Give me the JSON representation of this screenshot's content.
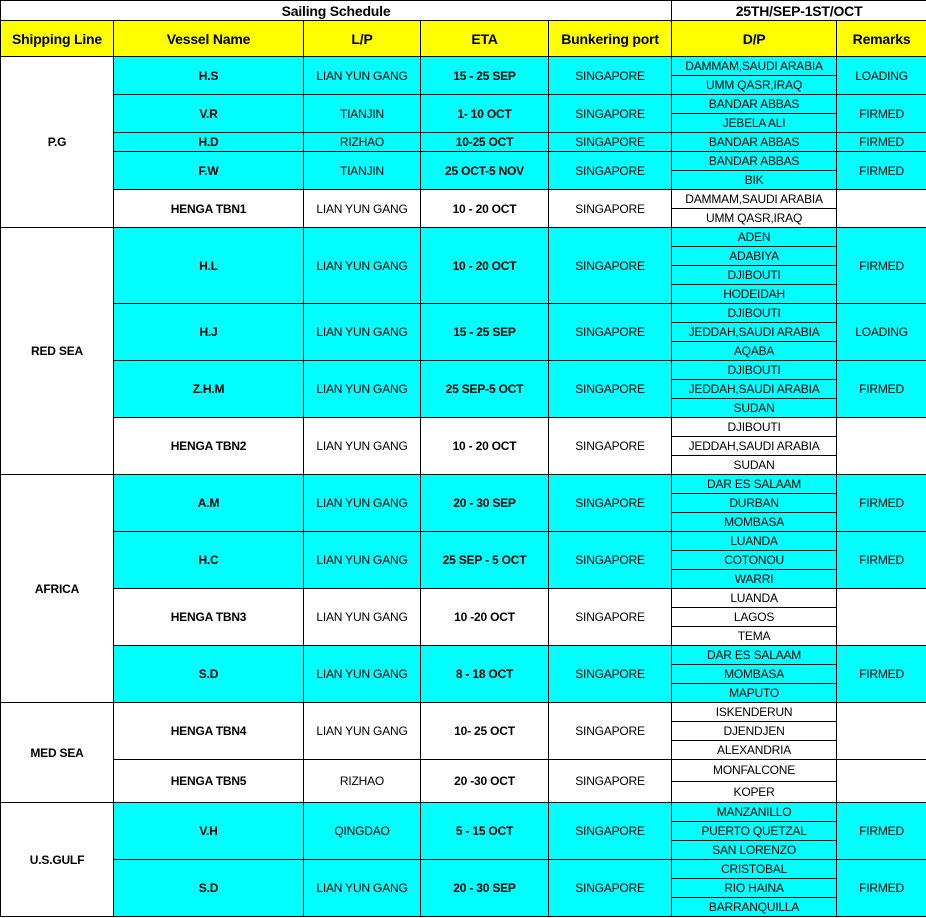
{
  "title": "Sailing Schedule",
  "period": "25TH/SEP-1ST/OCT",
  "headers": [
    "Shipping Line",
    "Vessel Name",
    "L/P",
    "ETA",
    "Bunkering port",
    "D/P",
    "Remarks"
  ],
  "colors": {
    "header": "#ffff00",
    "highlight": "#00ffff"
  },
  "groups": [
    {
      "name": "P.G",
      "vessels": [
        {
          "name": "H.S",
          "lp": "LIAN YUN GANG",
          "eta": "15 - 25 SEP",
          "port": "SINGAPORE",
          "dp": [
            "DAMMAM,SAUDI ARABIA",
            "UMM QASR,IRAQ"
          ],
          "remarks": "LOADING",
          "highlight": true
        },
        {
          "name": "V.R",
          "lp": "TIANJIN",
          "eta": "1- 10 OCT",
          "port": "SINGAPORE",
          "dp": [
            "BANDAR ABBAS",
            "JEBELA ALI"
          ],
          "remarks": "FIRMED",
          "highlight": true
        },
        {
          "name": "H.D",
          "lp": "RIZHAO",
          "eta": "10-25 OCT",
          "port": "SINGAPORE",
          "dp": [
            "BANDAR ABBAS"
          ],
          "remarks": "FIRMED",
          "highlight": true
        },
        {
          "name": "F.W",
          "lp": "TIANJIN",
          "eta": "25 OCT-5 NOV",
          "port": "SINGAPORE",
          "dp": [
            "BANDAR ABBAS",
            "BIK"
          ],
          "remarks": "FIRMED",
          "highlight": true
        },
        {
          "name": "HENGA TBN1",
          "lp": "LIAN YUN GANG",
          "eta": "10 - 20 OCT",
          "port": "SINGAPORE",
          "dp": [
            "DAMMAM,SAUDI ARABIA",
            "UMM QASR,IRAQ"
          ],
          "remarks": "",
          "highlight": false
        }
      ]
    },
    {
      "name": "RED SEA",
      "vessels": [
        {
          "name": "H.L",
          "lp": "LIAN YUN GANG",
          "eta": "10 - 20 OCT",
          "port": "SINGAPORE",
          "dp": [
            "ADEN",
            "ADABIYA",
            "DJIBOUTI",
            "HODEIDAH"
          ],
          "remarks": "FIRMED",
          "highlight": true
        },
        {
          "name": "H.J",
          "lp": "LIAN YUN GANG",
          "eta": "15 - 25 SEP",
          "port": "SINGAPORE",
          "dp": [
            "DJIBOUTI",
            "JEDDAH,SAUDI ARABIA",
            "AQABA"
          ],
          "remarks": "LOADING",
          "highlight": true
        },
        {
          "name": "Z.H.M",
          "lp": "LIAN YUN GANG",
          "eta": "25 SEP-5 OCT",
          "port": "SINGAPORE",
          "dp": [
            "DJIBOUTI",
            "JEDDAH,SAUDI ARABIA",
            "SUDAN"
          ],
          "remarks": "FIRMED",
          "highlight": true
        },
        {
          "name": "HENGA TBN2",
          "lp": "LIAN YUN GANG",
          "eta": "10 - 20 OCT",
          "port": "SINGAPORE",
          "dp": [
            "DJIBOUTI",
            "JEDDAH,SAUDI ARABIA",
            "SUDAN"
          ],
          "remarks": "",
          "highlight": false
        }
      ]
    },
    {
      "name": "AFRICA",
      "vessels": [
        {
          "name": "A.M",
          "lp": "LIAN YUN GANG",
          "eta": "20 - 30 SEP",
          "port": "SINGAPORE",
          "dp": [
            "DAR ES SALAAM",
            "DURBAN",
            "MOMBASA"
          ],
          "remarks": "FIRMED",
          "highlight": true
        },
        {
          "name": "H.C",
          "lp": "LIAN YUN GANG",
          "eta": "25 SEP - 5 OCT",
          "port": "SINGAPORE",
          "dp": [
            "LUANDA",
            "COTONOU",
            "WARRI"
          ],
          "remarks": "FIRMED",
          "highlight": true
        },
        {
          "name": "HENGA TBN3",
          "lp": "LIAN YUN GANG",
          "eta": "10 -20 OCT",
          "port": "SINGAPORE",
          "dp": [
            "LUANDA",
            "LAGOS",
            "TEMA"
          ],
          "remarks": "",
          "highlight": false
        },
        {
          "name": "S.D",
          "lp": "LIAN YUN GANG",
          "eta": "8 - 18 OCT",
          "port": "SINGAPORE",
          "dp": [
            "DAR ES SALAAM",
            "MOMBASA",
            "MAPUTO"
          ],
          "remarks": "FIRMED",
          "highlight": true
        }
      ]
    },
    {
      "name": "MED SEA",
      "vessels": [
        {
          "name": "HENGA TBN4",
          "lp": "LIAN YUN GANG",
          "eta": "10- 25 OCT",
          "port": "SINGAPORE",
          "dp": [
            "ISKENDERUN",
            "DJENDJEN",
            "ALEXANDRIA"
          ],
          "remarks": "",
          "highlight": false
        },
        {
          "name": "HENGA TBN5",
          "lp": "RIZHAO",
          "eta": "20 -30 OCT",
          "port": "SINGAPORE",
          "dp": [
            "MONFALCONE",
            "KOPER"
          ],
          "remarks": "",
          "highlight": false,
          "tall": true
        }
      ]
    },
    {
      "name": "U.S.GULF",
      "vessels": [
        {
          "name": "V.H",
          "lp": "QINGDAO",
          "eta": "5 - 15 OCT",
          "port": "SINGAPORE",
          "dp": [
            "MANZANILLO",
            "PUERTO QUETZAL",
            "SAN LORENZO"
          ],
          "remarks": "FIRMED",
          "highlight": true
        },
        {
          "name": "S.D",
          "lp": "LIAN YUN GANG",
          "eta": "20 - 30 SEP",
          "port": "SINGAPORE",
          "dp": [
            "CRISTOBAL",
            "RIO HAINA",
            "BARRANQUILLA"
          ],
          "remarks": "FIRMED",
          "highlight": true
        }
      ]
    }
  ]
}
